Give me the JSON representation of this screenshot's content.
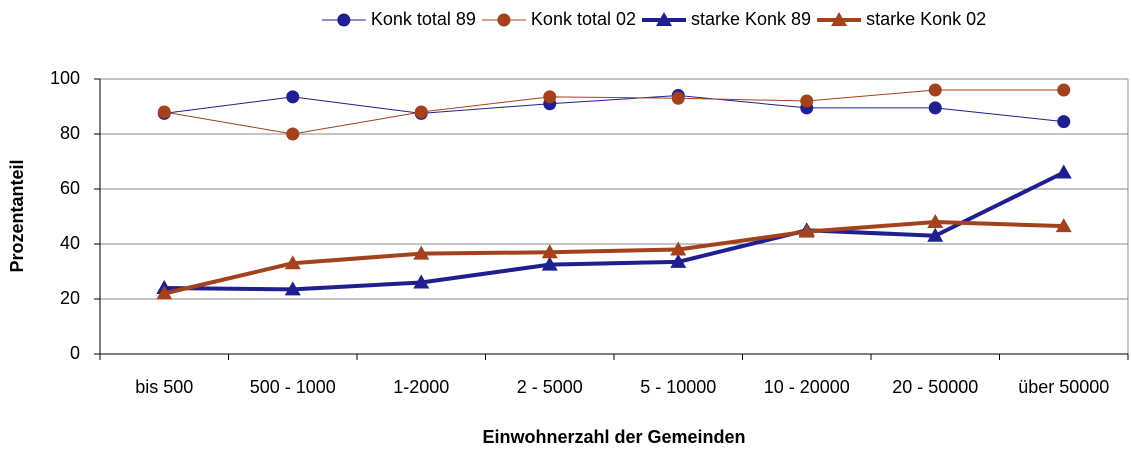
{
  "chart_data": {
    "type": "line",
    "x_label": "Einwohnerzahl der Gemeinden",
    "y_label": "Prozentanteil",
    "categories": [
      "bis 500",
      "500 - 1000",
      "1-2000",
      "2 - 5000",
      "5 - 10000",
      "10 - 20000",
      "20 - 50000",
      "über 50000"
    ],
    "series": [
      {
        "name": "Konk total 89",
        "color": "#1f1f8f",
        "marker": "circle",
        "line_width": 1,
        "values": [
          87.5,
          93.5,
          87.5,
          91,
          94,
          89.5,
          89.5,
          84.5
        ]
      },
      {
        "name": "Konk total 02",
        "color": "#a3421c",
        "marker": "circle",
        "line_width": 1,
        "values": [
          88,
          80,
          88,
          93.5,
          93,
          92,
          96,
          96
        ]
      },
      {
        "name": "starke Konk 89",
        "color": "#1f1f8f",
        "marker": "triangle",
        "line_width": 4,
        "values": [
          24,
          23.5,
          26,
          32.5,
          33.5,
          45,
          43,
          66
        ]
      },
      {
        "name": "starke Konk 02",
        "color": "#a3421c",
        "marker": "triangle",
        "line_width": 4,
        "values": [
          22,
          33,
          36.5,
          37,
          38,
          44.5,
          48,
          46.5
        ]
      }
    ],
    "ylim": [
      0,
      100
    ],
    "yticks": [
      0,
      20,
      40,
      60,
      80,
      100
    ],
    "grid": true,
    "legend": "top"
  }
}
